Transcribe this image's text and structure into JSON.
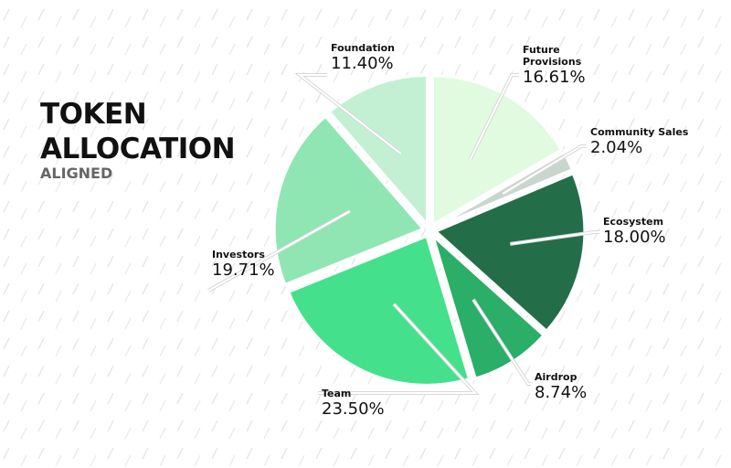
{
  "chart_data": {
    "type": "pie",
    "title": "TOKEN ALLOCATION",
    "subtitle": "ALIGNED",
    "categories": [
      "Future Provisions",
      "Community Sales",
      "Ecosystem",
      "Airdrop",
      "Team",
      "Investors",
      "Foundation"
    ],
    "values": [
      16.61,
      2.04,
      18.0,
      8.74,
      23.5,
      19.71,
      11.4
    ],
    "value_labels": [
      "16.61%",
      "2.04%",
      "18.00%",
      "8.74%",
      "23.50%",
      "19.71%",
      "11.40%"
    ],
    "colors": [
      "#e0fbe0",
      "#c9d6ce",
      "#236e48",
      "#2aae68",
      "#45e08c",
      "#8fe6b3",
      "#c3f0d3"
    ]
  }
}
